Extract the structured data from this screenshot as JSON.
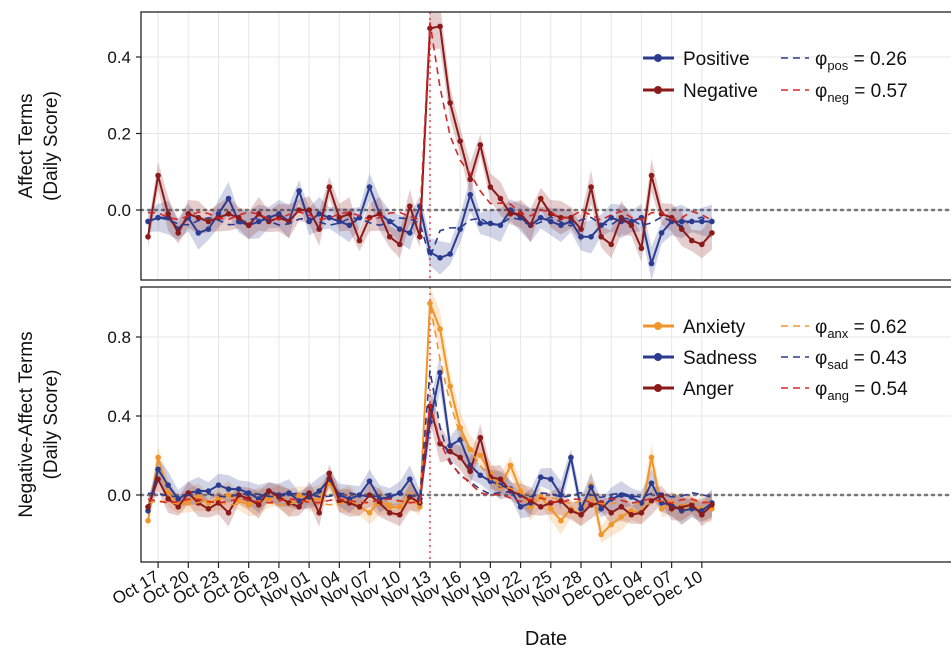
{
  "chart_data": [
    {
      "type": "line",
      "ylabel_line1": "Affect Terms",
      "ylabel_line2": "(Daily Score)",
      "xlabel": "Date",
      "ylim": [
        -0.18,
        0.52
      ],
      "yticks": [
        0.0,
        0.2,
        0.4
      ],
      "ytick_labels": [
        "0.0",
        "0.2",
        "0.4"
      ],
      "event_x": "2017-11-13",
      "grid": true,
      "legend_position": "top-right",
      "series": [
        {
          "name": "Positive",
          "color": "#2b3b8f",
          "x": [
            "2017-10-16",
            "2017-10-17",
            "2017-10-18",
            "2017-10-19",
            "2017-10-20",
            "2017-10-21",
            "2017-10-22",
            "2017-10-23",
            "2017-10-24",
            "2017-10-25",
            "2017-10-26",
            "2017-10-27",
            "2017-10-28",
            "2017-10-29",
            "2017-10-30",
            "2017-10-31",
            "2017-11-01",
            "2017-11-02",
            "2017-11-03",
            "2017-11-04",
            "2017-11-05",
            "2017-11-06",
            "2017-11-07",
            "2017-11-08",
            "2017-11-09",
            "2017-11-10",
            "2017-11-11",
            "2017-11-12",
            "2017-11-13",
            "2017-11-14",
            "2017-11-15",
            "2017-11-16",
            "2017-11-17",
            "2017-11-18",
            "2017-11-19",
            "2017-11-20",
            "2017-11-21",
            "2017-11-22",
            "2017-11-23",
            "2017-11-24",
            "2017-11-25",
            "2017-11-26",
            "2017-11-27",
            "2017-11-28",
            "2017-11-29",
            "2017-11-30",
            "2017-12-01",
            "2017-12-02",
            "2017-12-03",
            "2017-12-04",
            "2017-12-05",
            "2017-12-06",
            "2017-12-07",
            "2017-12-08",
            "2017-12-09",
            "2017-12-10",
            "2017-12-11"
          ],
          "y": [
            -0.03,
            -0.02,
            -0.02,
            -0.05,
            -0.02,
            -0.06,
            -0.05,
            -0.01,
            0.03,
            -0.03,
            -0.04,
            -0.03,
            -0.02,
            -0.01,
            -0.03,
            0.05,
            -0.03,
            -0.01,
            -0.02,
            -0.03,
            -0.04,
            -0.02,
            0.06,
            -0.01,
            -0.03,
            -0.05,
            -0.06,
            0.01,
            -0.11,
            -0.125,
            -0.115,
            -0.05,
            0.04,
            -0.035,
            -0.035,
            -0.04,
            0.0,
            -0.02,
            -0.04,
            -0.02,
            -0.03,
            -0.04,
            -0.03,
            -0.07,
            -0.07,
            -0.04,
            -0.02,
            -0.03,
            -0.03,
            -0.02,
            -0.14,
            -0.06,
            -0.03,
            -0.03,
            -0.03,
            -0.03,
            -0.03
          ]
        },
        {
          "name": "Negative",
          "color": "#8b1a1a",
          "x": [
            "2017-10-16",
            "2017-10-17",
            "2017-10-18",
            "2017-10-19",
            "2017-10-20",
            "2017-10-21",
            "2017-10-22",
            "2017-10-23",
            "2017-10-24",
            "2017-10-25",
            "2017-10-26",
            "2017-10-27",
            "2017-10-28",
            "2017-10-29",
            "2017-10-30",
            "2017-10-31",
            "2017-11-01",
            "2017-11-02",
            "2017-11-03",
            "2017-11-04",
            "2017-11-05",
            "2017-11-06",
            "2017-11-07",
            "2017-11-08",
            "2017-11-09",
            "2017-11-10",
            "2017-11-11",
            "2017-11-12",
            "2017-11-13",
            "2017-11-14",
            "2017-11-15",
            "2017-11-16",
            "2017-11-17",
            "2017-11-18",
            "2017-11-19",
            "2017-11-20",
            "2017-11-21",
            "2017-11-22",
            "2017-11-23",
            "2017-11-24",
            "2017-11-25",
            "2017-11-26",
            "2017-11-27",
            "2017-11-28",
            "2017-11-29",
            "2017-11-30",
            "2017-12-01",
            "2017-12-02",
            "2017-12-03",
            "2017-12-04",
            "2017-12-05",
            "2017-12-06",
            "2017-12-07",
            "2017-12-08",
            "2017-12-09",
            "2017-12-10",
            "2017-12-11"
          ],
          "y": [
            -0.07,
            0.09,
            -0.01,
            -0.06,
            -0.01,
            -0.02,
            -0.03,
            -0.02,
            -0.01,
            -0.02,
            -0.04,
            -0.01,
            -0.03,
            -0.02,
            -0.03,
            0.0,
            0.0,
            -0.05,
            0.06,
            -0.02,
            -0.01,
            -0.08,
            -0.02,
            -0.01,
            -0.07,
            -0.09,
            0.01,
            -0.07,
            0.475,
            0.48,
            0.28,
            0.18,
            0.08,
            0.17,
            0.06,
            0.03,
            -0.01,
            -0.01,
            -0.04,
            0.03,
            -0.01,
            -0.02,
            -0.02,
            -0.05,
            0.06,
            -0.07,
            -0.09,
            -0.02,
            -0.04,
            -0.1,
            0.09,
            -0.01,
            -0.02,
            -0.05,
            -0.08,
            -0.09,
            -0.06
          ]
        }
      ],
      "fits": [
        {
          "name": "φpos = 0.26",
          "symbol": "φ",
          "sub": "pos",
          "value_text": " = 0.26",
          "color": "#2b3b8f",
          "peak": -0.125,
          "phi": 0.26
        },
        {
          "name": "φneg = 0.57",
          "symbol": "φ",
          "sub": "neg",
          "value_text": " = 0.57",
          "color": "#d62728",
          "peak": 0.48,
          "phi": 0.57
        }
      ]
    },
    {
      "type": "line",
      "ylabel_line1": "Negative-Affect Terms",
      "ylabel_line2": "(Daily Score)",
      "xlabel": "Date",
      "ylim": [
        -0.34,
        1.02
      ],
      "yticks": [
        0.0,
        0.4,
        0.8
      ],
      "ytick_labels": [
        "0.0",
        "0.4",
        "0.8"
      ],
      "event_x": "2017-11-13",
      "grid": true,
      "legend_position": "top-right",
      "series": [
        {
          "name": "Anxiety",
          "color": "#f0952a",
          "x": [
            "2017-10-16",
            "2017-10-17",
            "2017-10-18",
            "2017-10-19",
            "2017-10-20",
            "2017-10-21",
            "2017-10-22",
            "2017-10-23",
            "2017-10-24",
            "2017-10-25",
            "2017-10-26",
            "2017-10-27",
            "2017-10-28",
            "2017-10-29",
            "2017-10-30",
            "2017-10-31",
            "2017-11-01",
            "2017-11-02",
            "2017-11-03",
            "2017-11-04",
            "2017-11-05",
            "2017-11-06",
            "2017-11-07",
            "2017-11-08",
            "2017-11-09",
            "2017-11-10",
            "2017-11-11",
            "2017-11-12",
            "2017-11-13",
            "2017-11-14",
            "2017-11-15",
            "2017-11-16",
            "2017-11-17",
            "2017-11-18",
            "2017-11-19",
            "2017-11-20",
            "2017-11-21",
            "2017-11-22",
            "2017-11-23",
            "2017-11-24",
            "2017-11-25",
            "2017-11-26",
            "2017-11-27",
            "2017-11-28",
            "2017-11-29",
            "2017-11-30",
            "2017-12-01",
            "2017-12-02",
            "2017-12-03",
            "2017-12-04",
            "2017-12-05",
            "2017-12-06",
            "2017-12-07",
            "2017-12-08",
            "2017-12-09",
            "2017-12-10",
            "2017-12-11"
          ],
          "y": [
            -0.13,
            0.19,
            0.01,
            -0.05,
            -0.03,
            -0.01,
            -0.04,
            -0.02,
            0.0,
            -0.03,
            -0.05,
            -0.03,
            -0.02,
            0.0,
            -0.04,
            0.0,
            -0.02,
            -0.02,
            0.06,
            -0.03,
            -0.02,
            -0.06,
            -0.09,
            -0.03,
            -0.06,
            -0.06,
            0.0,
            -0.06,
            0.97,
            0.84,
            0.55,
            0.34,
            0.23,
            0.2,
            0.11,
            0.04,
            0.15,
            0.02,
            -0.06,
            -0.01,
            -0.07,
            -0.13,
            -0.07,
            -0.1,
            0.05,
            -0.2,
            -0.15,
            -0.11,
            -0.08,
            -0.09,
            0.19,
            -0.07,
            -0.04,
            -0.08,
            -0.06,
            -0.07,
            -0.07
          ]
        },
        {
          "name": "Sadness",
          "color": "#2b3b8f",
          "x": [
            "2017-10-16",
            "2017-10-17",
            "2017-10-18",
            "2017-10-19",
            "2017-10-20",
            "2017-10-21",
            "2017-10-22",
            "2017-10-23",
            "2017-10-24",
            "2017-10-25",
            "2017-10-26",
            "2017-10-27",
            "2017-10-28",
            "2017-10-29",
            "2017-10-30",
            "2017-10-31",
            "2017-11-01",
            "2017-11-02",
            "2017-11-03",
            "2017-11-04",
            "2017-11-05",
            "2017-11-06",
            "2017-11-07",
            "2017-11-08",
            "2017-11-09",
            "2017-11-10",
            "2017-11-11",
            "2017-11-12",
            "2017-11-13",
            "2017-11-14",
            "2017-11-15",
            "2017-11-16",
            "2017-11-17",
            "2017-11-18",
            "2017-11-19",
            "2017-11-20",
            "2017-11-21",
            "2017-11-22",
            "2017-11-23",
            "2017-11-24",
            "2017-11-25",
            "2017-11-26",
            "2017-11-27",
            "2017-11-28",
            "2017-11-29",
            "2017-11-30",
            "2017-12-01",
            "2017-12-02",
            "2017-12-03",
            "2017-12-04",
            "2017-12-05",
            "2017-12-06",
            "2017-12-07",
            "2017-12-08",
            "2017-12-09",
            "2017-12-10",
            "2017-12-11"
          ],
          "y": [
            -0.08,
            0.13,
            0.05,
            -0.02,
            0.01,
            0.02,
            0.02,
            0.05,
            0.03,
            0.03,
            0.01,
            -0.02,
            0.02,
            0.0,
            0.01,
            -0.03,
            -0.01,
            0.02,
            0.08,
            0.0,
            -0.02,
            0.0,
            0.07,
            -0.02,
            -0.01,
            0.01,
            0.08,
            -0.02,
            0.37,
            0.62,
            0.25,
            0.28,
            0.15,
            0.1,
            0.07,
            0.05,
            0.03,
            -0.06,
            -0.04,
            0.09,
            0.08,
            0.0,
            0.19,
            -0.07,
            0.04,
            -0.07,
            -0.02,
            0.0,
            -0.01,
            -0.04,
            0.06,
            -0.04,
            -0.05,
            -0.08,
            -0.07,
            -0.08,
            -0.04
          ]
        },
        {
          "name": "Anger",
          "color": "#8b1a1a",
          "x": [
            "2017-10-16",
            "2017-10-17",
            "2017-10-18",
            "2017-10-19",
            "2017-10-20",
            "2017-10-21",
            "2017-10-22",
            "2017-10-23",
            "2017-10-24",
            "2017-10-25",
            "2017-10-26",
            "2017-10-27",
            "2017-10-28",
            "2017-10-29",
            "2017-10-30",
            "2017-10-31",
            "2017-11-01",
            "2017-11-02",
            "2017-11-03",
            "2017-11-04",
            "2017-11-05",
            "2017-11-06",
            "2017-11-07",
            "2017-11-08",
            "2017-11-09",
            "2017-11-10",
            "2017-11-11",
            "2017-11-12",
            "2017-11-13",
            "2017-11-14",
            "2017-11-15",
            "2017-11-16",
            "2017-11-17",
            "2017-11-18",
            "2017-11-19",
            "2017-11-20",
            "2017-11-21",
            "2017-11-22",
            "2017-11-23",
            "2017-11-24",
            "2017-11-25",
            "2017-11-26",
            "2017-11-27",
            "2017-11-28",
            "2017-11-29",
            "2017-11-30",
            "2017-12-01",
            "2017-12-02",
            "2017-12-03",
            "2017-12-04",
            "2017-12-05",
            "2017-12-06",
            "2017-12-07",
            "2017-12-08",
            "2017-12-09",
            "2017-12-10",
            "2017-12-11"
          ],
          "y": [
            -0.06,
            0.08,
            -0.02,
            -0.06,
            0.01,
            -0.04,
            -0.07,
            -0.04,
            -0.09,
            0.0,
            -0.02,
            -0.05,
            0.02,
            -0.01,
            -0.04,
            -0.06,
            0.01,
            -0.09,
            0.11,
            -0.03,
            -0.04,
            -0.06,
            0.0,
            -0.04,
            -0.09,
            -0.1,
            -0.01,
            -0.04,
            0.45,
            0.26,
            0.22,
            0.19,
            0.12,
            0.29,
            0.09,
            0.08,
            0.02,
            0.0,
            -0.03,
            -0.06,
            -0.04,
            -0.03,
            -0.08,
            -0.1,
            -0.05,
            -0.04,
            -0.09,
            -0.06,
            -0.1,
            -0.09,
            -0.03,
            0.0,
            -0.07,
            -0.06,
            -0.05,
            -0.1,
            -0.05
          ]
        }
      ],
      "fits": [
        {
          "name": "φanx = 0.62",
          "symbol": "φ",
          "sub": "anx",
          "value_text": " = 0.62",
          "color": "#f0952a",
          "peak": 0.97,
          "phi": 0.62
        },
        {
          "name": "φsad = 0.43",
          "symbol": "φ",
          "sub": "sad",
          "value_text": " = 0.43",
          "color": "#2b3b8f",
          "peak": 0.62,
          "phi": 0.43
        },
        {
          "name": "φang = 0.54",
          "symbol": "φ",
          "sub": "ang",
          "value_text": " = 0.54",
          "color": "#d62728",
          "peak": 0.45,
          "phi": 0.54
        }
      ]
    }
  ],
  "x_axis": {
    "xlabel": "Date",
    "xlim": [
      "2017-10-16",
      "2017-12-11"
    ],
    "tick_dates": [
      "2017-10-17",
      "2017-10-20",
      "2017-10-23",
      "2017-10-26",
      "2017-10-29",
      "2017-11-01",
      "2017-11-04",
      "2017-11-07",
      "2017-11-10",
      "2017-11-13",
      "2017-11-16",
      "2017-11-19",
      "2017-11-22",
      "2017-11-25",
      "2017-11-28",
      "2017-12-01",
      "2017-12-04",
      "2017-12-07",
      "2017-12-10"
    ],
    "tick_labels": [
      "Oct 17",
      "Oct 20",
      "Oct 23",
      "Oct 26",
      "Oct 29",
      "Nov 01",
      "Nov 04",
      "Nov 07",
      "Nov 10",
      "Nov 13",
      "Nov 16",
      "Nov 19",
      "Nov 22",
      "Nov 25",
      "Nov 28",
      "Dec 01",
      "Dec 04",
      "Dec 07",
      "Dec 10"
    ]
  },
  "colors": {
    "event_line": "#e8707a",
    "zero_line": "#777777",
    "grid": "#e6e6e6",
    "frame": "#222222"
  }
}
